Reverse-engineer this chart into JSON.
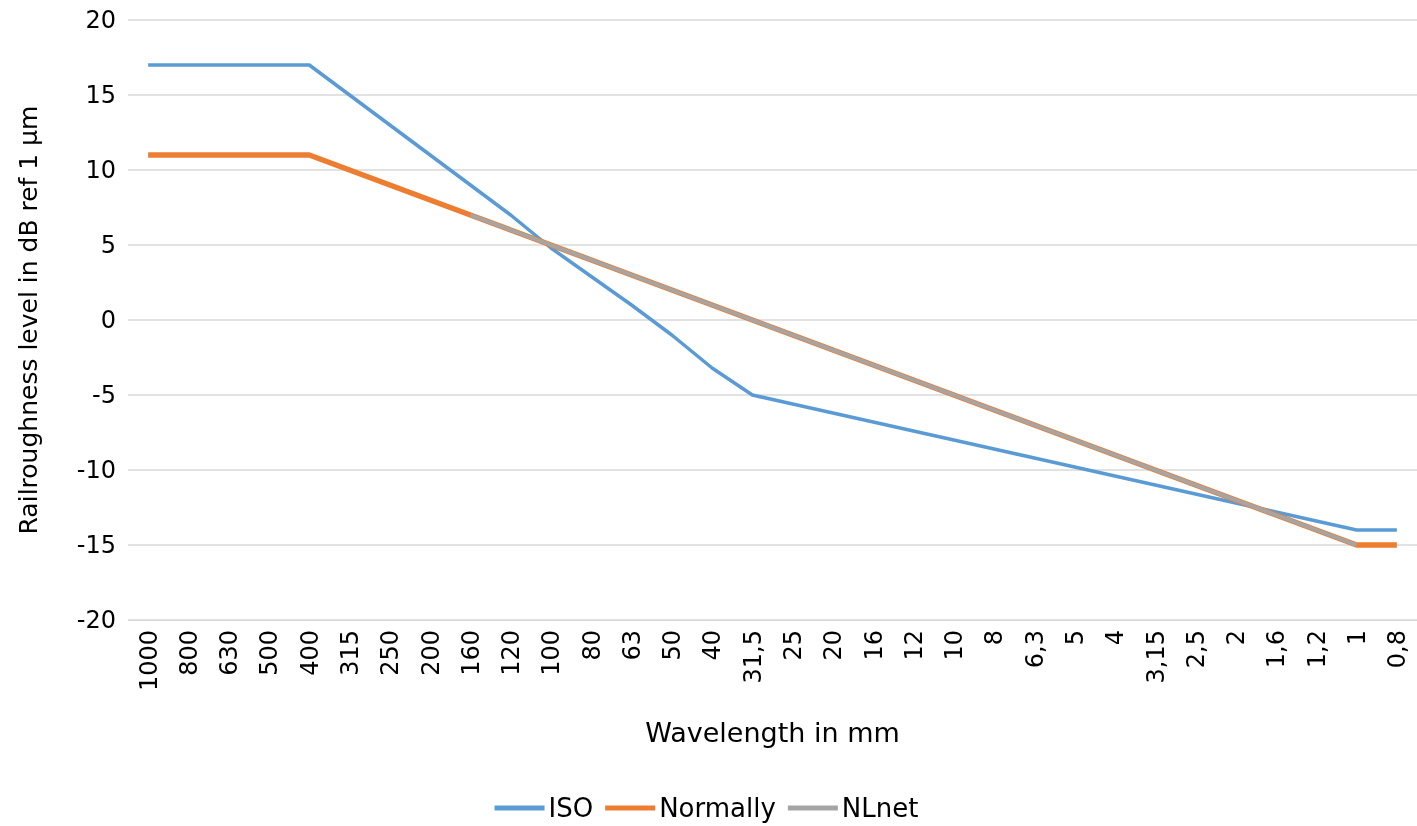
{
  "chart_data": {
    "type": "line",
    "xlabel": "Wavelength in mm",
    "ylabel": "Railroughness level in dB ref 1 µm",
    "categories": [
      "1000",
      "800",
      "630",
      "500",
      "400",
      "315",
      "250",
      "200",
      "160",
      "120",
      "100",
      "80",
      "63",
      "50",
      "40",
      "31,5",
      "25",
      "20",
      "16",
      "12",
      "10",
      "8",
      "6,3",
      "5",
      "4",
      "3,15",
      "2,5",
      "2",
      "1,6",
      "1,2",
      "1",
      "0,8"
    ],
    "series": [
      {
        "name": "ISO",
        "color": "#5b9bd5",
        "values": [
          17,
          17,
          17,
          17,
          17,
          15,
          13,
          11,
          9,
          7,
          4.8,
          2.9,
          1,
          -1,
          -3.2,
          -5,
          -5.6,
          -6.2,
          -6.8,
          -7.4,
          -8,
          -8.6,
          -9.2,
          -9.8,
          -10.4,
          -11,
          -11.6,
          -12.2,
          -12.8,
          -13.4,
          -14,
          -14
        ]
      },
      {
        "name": "Normally",
        "color": "#ed7d31",
        "values": [
          11,
          11,
          11,
          11,
          11,
          10,
          9,
          8,
          7,
          6,
          5,
          4,
          3,
          2,
          1,
          0,
          -1,
          -2,
          -3,
          -4,
          -5,
          -6,
          -7,
          -8,
          -9,
          -10,
          -11,
          -12,
          -13,
          -14,
          -15,
          -15
        ]
      },
      {
        "name": "NLnet",
        "color": "#a5a5a5",
        "values": [
          null,
          null,
          null,
          null,
          null,
          null,
          null,
          null,
          7,
          6,
          5,
          4,
          3,
          2,
          1,
          0,
          -1,
          -2,
          -3,
          -4,
          -5,
          -6,
          -7,
          -8,
          -9,
          -10,
          -11,
          -12,
          -13,
          -14,
          -15,
          null
        ]
      }
    ],
    "ylim": [
      -20,
      20
    ],
    "yticks": [
      -20,
      -15,
      -10,
      -5,
      0,
      5,
      10,
      15,
      20
    ],
    "grid": "y",
    "legend": "bottom",
    "marker": "none",
    "line_style": "solid"
  }
}
